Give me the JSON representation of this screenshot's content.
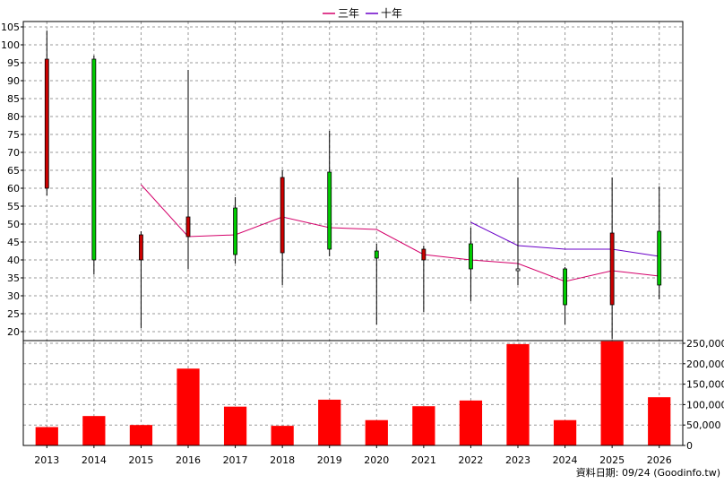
{
  "chart_data": {
    "type": "candlestick+bar",
    "legend": [
      {
        "name": "三年",
        "color": "#d4006a"
      },
      {
        "name": "十年",
        "color": "#6a00c8"
      }
    ],
    "categories": [
      "2013",
      "2014",
      "2015",
      "2016",
      "2017",
      "2018",
      "2019",
      "2020",
      "2021",
      "2022",
      "2023",
      "2024",
      "2025",
      "2026"
    ],
    "price_axis": {
      "min": 20,
      "max": 105,
      "step": 5
    },
    "volume_axis": {
      "min": 0,
      "max": 250000,
      "ticks": [
        0,
        50000,
        100000,
        150000,
        200000,
        250000
      ],
      "tick_labels": [
        "0",
        "50,000",
        "100,000",
        "150,000",
        "200,000",
        "250,000"
      ]
    },
    "candles": [
      {
        "open": 60,
        "close": 96,
        "high": 104,
        "low": 58,
        "color": "red"
      },
      {
        "open": 96,
        "close": 40,
        "high": 97,
        "low": 36,
        "color": "green"
      },
      {
        "open": 40,
        "close": 47,
        "high": 48,
        "low": 21,
        "color": "red"
      },
      {
        "open": 46.5,
        "close": 52,
        "high": 93,
        "low": 37.5,
        "color": "red"
      },
      {
        "open": 54.5,
        "close": 41.5,
        "high": 57.5,
        "low": 39,
        "color": "green"
      },
      {
        "open": 42,
        "close": 63,
        "high": 65,
        "low": 33,
        "color": "red"
      },
      {
        "open": 64.5,
        "close": 43,
        "high": 76,
        "low": 41,
        "color": "green"
      },
      {
        "open": 42.5,
        "close": 40.5,
        "high": 44.5,
        "low": 22,
        "color": "green"
      },
      {
        "open": 40,
        "close": 43,
        "high": 44,
        "low": 25.5,
        "color": "red"
      },
      {
        "open": 44.5,
        "close": 37.5,
        "high": 49,
        "low": 28.5,
        "color": "green"
      },
      {
        "open": 37.5,
        "close": 37,
        "high": 63,
        "low": 33,
        "color": "white"
      },
      {
        "open": 37.5,
        "close": 27.5,
        "high": 38,
        "low": 22,
        "color": "green"
      },
      {
        "open": 27.5,
        "close": 47.5,
        "high": 63,
        "low": 18,
        "color": "red"
      },
      {
        "open": 48,
        "close": 33,
        "high": 60.5,
        "low": 29,
        "color": "green"
      }
    ],
    "ma3": [
      null,
      null,
      61,
      46.5,
      47,
      52,
      49,
      48.5,
      41.5,
      40,
      39,
      34,
      37,
      35.5
    ],
    "ma10": [
      null,
      null,
      null,
      null,
      null,
      null,
      null,
      null,
      null,
      50.5,
      44,
      43,
      43,
      41
    ],
    "volume": [
      45000,
      72000,
      50000,
      188000,
      95000,
      48000,
      112000,
      62000,
      96000,
      110000,
      248000,
      62000,
      255000,
      118000
    ],
    "source_label": "資料日期: 09/24  (Goodinfo.tw)"
  }
}
